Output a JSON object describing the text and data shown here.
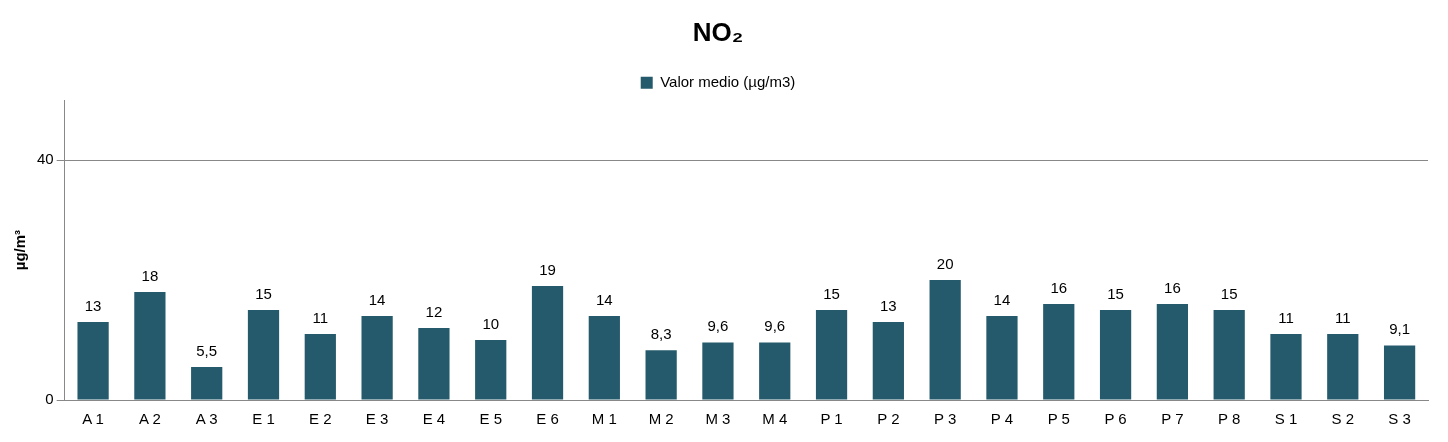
{
  "chart_data": {
    "type": "bar",
    "title": "NO₂",
    "ylabel": "µg/m³",
    "categories": [
      "A 1",
      "A 2",
      "A 3",
      "E 1",
      "E 2",
      "E 3",
      "E 4",
      "E 5",
      "E 6",
      "M 1",
      "M 2",
      "M 3",
      "M 4",
      "P 1",
      "P 2",
      "P 3",
      "P 4",
      "P 5",
      "P 6",
      "P 7",
      "P 8",
      "S 1",
      "S 2",
      "S 3"
    ],
    "series": [
      {
        "name": "Valor medio (µg/m3)",
        "color": "#245a6b",
        "values": [
          13,
          18,
          5.5,
          15,
          11,
          14,
          12,
          10,
          19,
          14,
          8.3,
          9.6,
          9.6,
          15,
          13,
          20,
          14,
          16,
          15,
          16,
          15,
          11,
          11,
          9.1
        ],
        "value_labels": [
          "13",
          "18",
          "5,5",
          "15",
          "11",
          "14",
          "12",
          "10",
          "19",
          "14",
          "8,3",
          "9,6",
          "9,6",
          "15",
          "13",
          "20",
          "14",
          "16",
          "15",
          "16",
          "15",
          "11",
          "11",
          "9,1"
        ]
      }
    ],
    "ylim": [
      0,
      50
    ],
    "yticks": [
      0,
      40
    ],
    "grid": "y",
    "legend": "top"
  }
}
